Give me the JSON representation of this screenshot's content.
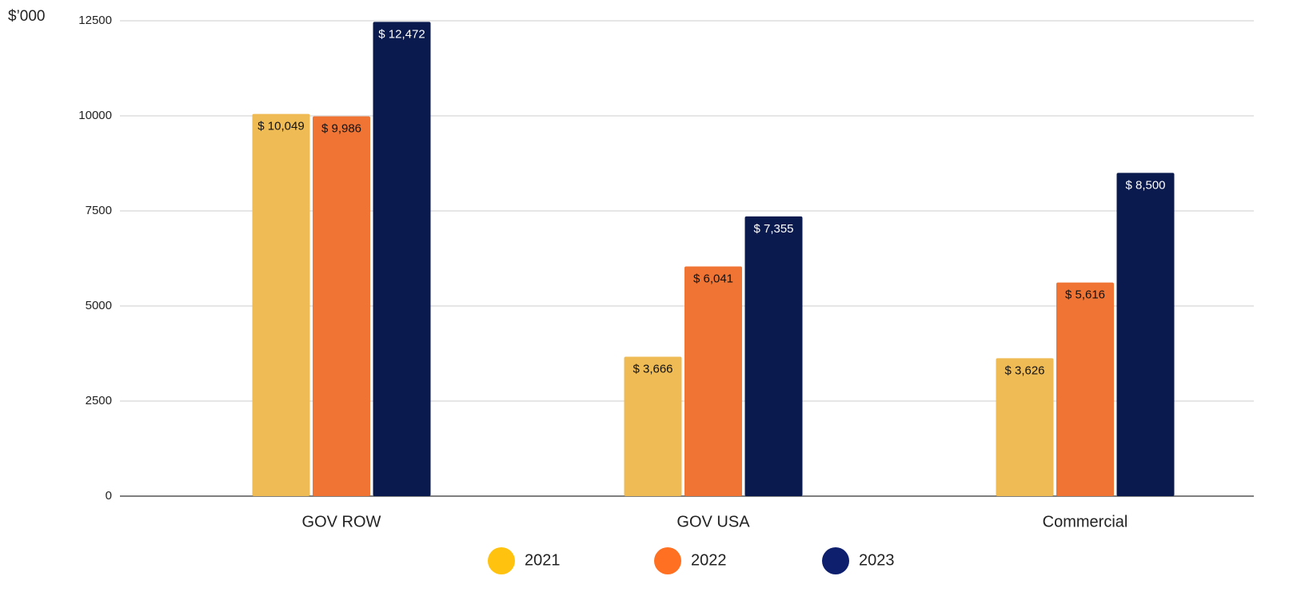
{
  "chart_data": {
    "type": "bar",
    "y_axis_label": "$’000",
    "categories": [
      "GOV ROW",
      "GOV USA",
      "Commercial"
    ],
    "series": [
      {
        "name": "2021",
        "color": "#efbb55",
        "legend_color": "#ffc20e",
        "values": [
          10049,
          3666,
          3626
        ],
        "value_labels": [
          "$ 10,049",
          "$ 3,666",
          "$ 3,626"
        ]
      },
      {
        "name": "2022",
        "color": "#f07535",
        "legend_color": "#ff7022",
        "values": [
          9986,
          6041,
          5616
        ],
        "value_labels": [
          "$ 9,986",
          "$ 6,041",
          "$ 5,616"
        ]
      },
      {
        "name": "2023",
        "color": "#0a1a4e",
        "legend_color": "#0e1f6e",
        "values": [
          12472,
          7355,
          8500
        ],
        "value_labels": [
          "$ 12,472",
          "$ 7,355",
          "$ 8,500"
        ]
      }
    ],
    "ylim": [
      0,
      12500
    ],
    "yticks": [
      0,
      2500,
      5000,
      7500,
      10000,
      12500
    ],
    "grid": true
  }
}
